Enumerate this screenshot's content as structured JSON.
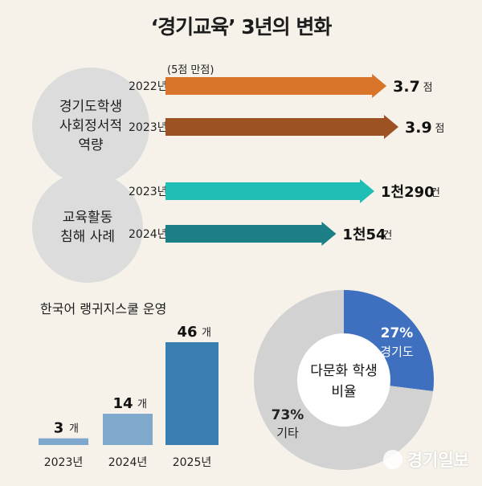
{
  "title": "‘경기교육’ 3년의 변화",
  "section1": {
    "label": "경기도학생\n사회정서적\n역량",
    "note": "(5점 만점)"
  },
  "section2": {
    "label": "교육활동\n침해 사례"
  },
  "colors": {
    "arrow_2022": "#d8752b",
    "arrow_2023": "#9c5223",
    "arrow_teal": "#1fbfb5",
    "arrow_teal_dark": "#1c7f86",
    "bar": "#7ea8cc",
    "bar_tall": "#3a7fb2",
    "pie_gyeonggi": "#3f6fbf",
    "pie_other": "#d2d2d2"
  },
  "chart_data": [
    {
      "type": "bar",
      "orientation": "horizontal",
      "categories": [
        "2022년",
        "2023년"
      ],
      "values": [
        3.7,
        3.9
      ],
      "value_labels": [
        "3.7",
        "3.9"
      ],
      "unit": "점"
    },
    {
      "type": "bar",
      "orientation": "horizontal",
      "categories": [
        "2023년",
        "2024년"
      ],
      "values": [
        1290,
        1054
      ],
      "value_labels": [
        "1천290",
        "1천54"
      ],
      "unit": "건"
    },
    {
      "type": "bar",
      "title": "한국어 랭귀지스쿨 운영",
      "categories": [
        "2023년",
        "2024년",
        "2025년"
      ],
      "values": [
        3,
        14,
        46
      ],
      "value_labels": [
        "3",
        "14",
        "46"
      ],
      "unit": "개"
    },
    {
      "type": "pie",
      "title": "다문화 학생 비율",
      "labels": [
        "경기도",
        "기타"
      ],
      "values": [
        27,
        73
      ],
      "value_labels": [
        "27%",
        "73%"
      ]
    }
  ],
  "watermark": "경기일보"
}
